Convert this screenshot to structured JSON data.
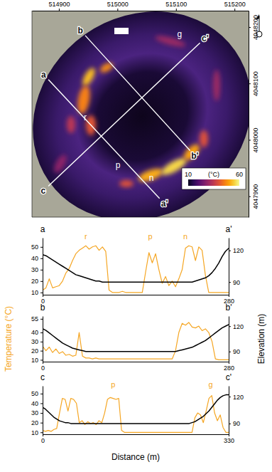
{
  "chart_data": [
    {
      "type": "map",
      "xlim": [
        514854,
        515224
      ],
      "ylim": [
        4047863,
        4048229
      ],
      "xticks": [
        514900,
        515000,
        515100,
        515200
      ],
      "yticks": [
        4047900,
        4048000,
        4048100,
        4048200
      ],
      "transects": [
        {
          "labels": [
            "a",
            "a'"
          ],
          "x": [
            514882,
            515072
          ],
          "y": [
            4048107,
            4047896
          ]
        },
        {
          "labels": [
            "b",
            "b'"
          ],
          "x": [
            514945,
            515124
          ],
          "y": [
            4048185,
            4047981
          ]
        },
        {
          "labels": [
            "c",
            "c'"
          ],
          "x": [
            514882,
            515141
          ],
          "y": [
            4047918,
            4048172
          ]
        }
      ],
      "features": [
        {
          "label": "r",
          "x": 514945,
          "y": 4048040
        },
        {
          "label": "p",
          "x": 515001,
          "y": 4047955
        },
        {
          "label": "n",
          "x": 515058,
          "y": 4047933
        },
        {
          "label": "g",
          "x": 515106,
          "y": 4048187
        }
      ],
      "colorbar": {
        "range": [
          10,
          60
        ],
        "ticks": [
          10,
          60
        ],
        "label": "(°C)"
      }
    },
    {
      "type": "line",
      "ends": [
        "a",
        "a'"
      ],
      "x": [
        0,
        5,
        10,
        15,
        20,
        25,
        30,
        35,
        40,
        45,
        50,
        55,
        60,
        65,
        70,
        75,
        80,
        85,
        90,
        95,
        100,
        105,
        110,
        115,
        120,
        125,
        130,
        135,
        140,
        145,
        150,
        155,
        160,
        165,
        170,
        175,
        180,
        185,
        190,
        195,
        200,
        205,
        210,
        215,
        220,
        225,
        230,
        235,
        240,
        245,
        250,
        255,
        260,
        265,
        270,
        275,
        280
      ],
      "xlim": [
        0,
        280
      ],
      "xticks": [
        0,
        280
      ],
      "ylim": [
        8,
        58
      ],
      "yticks": [
        10,
        20,
        30,
        40,
        50
      ],
      "y2lim": [
        78,
        132
      ],
      "y2ticks": [
        90,
        120
      ],
      "annotations": [
        {
          "text": "r",
          "x": 65
        },
        {
          "text": "p",
          "x": 162
        },
        {
          "text": "n",
          "x": 215
        }
      ],
      "series": [
        {
          "color": "#f5a623",
          "values": [
            12,
            14,
            22,
            14,
            15,
            16,
            20,
            27,
            31,
            38,
            44,
            47,
            49,
            51,
            48,
            50,
            51,
            47,
            50,
            46,
            12,
            10,
            10,
            10,
            11,
            10,
            10,
            10,
            10,
            10,
            10,
            28,
            45,
            36,
            44,
            30,
            18,
            24,
            16,
            20,
            15,
            22,
            30,
            49,
            51,
            50,
            38,
            50,
            47,
            25,
            10,
            10,
            10,
            10,
            10,
            10,
            10
          ]
        },
        {
          "color": "#000000",
          "axis": "y2",
          "values": [
            116,
            115,
            113,
            111,
            109,
            107,
            105,
            103,
            101,
            99,
            97,
            96,
            95,
            94,
            93,
            92,
            91,
            91,
            90,
            90,
            90,
            90,
            90,
            90,
            90,
            90,
            90,
            90,
            90,
            90,
            90,
            90,
            90,
            90,
            90,
            90,
            90,
            90,
            90,
            90,
            90,
            90,
            90,
            90,
            90,
            90,
            91,
            92,
            93,
            94,
            96,
            99,
            103,
            108,
            114,
            119,
            122
          ]
        }
      ]
    },
    {
      "type": "line",
      "ends": [
        "b",
        "b'"
      ],
      "ylabel": "Temperature (°C)",
      "y2label": "Elevation (m)",
      "x": [
        0,
        5,
        10,
        15,
        20,
        25,
        30,
        35,
        40,
        45,
        50,
        55,
        60,
        65,
        70,
        75,
        80,
        85,
        90,
        95,
        100,
        105,
        110,
        115,
        120,
        125,
        130,
        135,
        140,
        145,
        150,
        155,
        160,
        165,
        170,
        175,
        180,
        185,
        190,
        195,
        200,
        205,
        210,
        215,
        220,
        225,
        230,
        235,
        240,
        245,
        250,
        255,
        260,
        265,
        270,
        275,
        280
      ],
      "xlim": [
        0,
        280
      ],
      "xticks": [
        0,
        280
      ],
      "ylim": [
        8,
        58
      ],
      "yticks": [
        10,
        20,
        30,
        40,
        55
      ],
      "y2lim": [
        78,
        132
      ],
      "y2ticks": [
        90,
        120
      ],
      "series": [
        {
          "color": "#f5a623",
          "values": [
            25,
            20,
            24,
            18,
            22,
            17,
            19,
            15,
            16,
            14,
            15,
            40,
            14,
            12,
            12,
            11,
            12,
            11,
            11,
            11,
            11,
            11,
            11,
            11,
            11,
            11,
            11,
            11,
            11,
            11,
            11,
            11,
            11,
            11,
            11,
            11,
            11,
            11,
            11,
            11,
            20,
            40,
            50,
            48,
            51,
            46,
            45,
            47,
            42,
            44,
            40,
            30,
            11,
            10,
            10,
            10,
            10
          ]
        },
        {
          "color": "#000000",
          "axis": "y2",
          "values": [
            117,
            115,
            112,
            109,
            106,
            103,
            100,
            98,
            96,
            94,
            93,
            92,
            91,
            90,
            90,
            90,
            90,
            90,
            90,
            90,
            90,
            90,
            90,
            90,
            90,
            90,
            90,
            90,
            90,
            90,
            90,
            90,
            90,
            90,
            90,
            90,
            90,
            90,
            90,
            90,
            90,
            91,
            92,
            93,
            94,
            95,
            97,
            99,
            101,
            103,
            106,
            109,
            112,
            115,
            118,
            120,
            122
          ]
        }
      ]
    },
    {
      "type": "line",
      "ends": [
        "c",
        "c'"
      ],
      "xlabel": "Distance (m)",
      "x": [
        0,
        5,
        10,
        15,
        20,
        25,
        30,
        35,
        40,
        45,
        50,
        55,
        60,
        65,
        70,
        75,
        80,
        85,
        90,
        95,
        100,
        105,
        110,
        115,
        120,
        125,
        130,
        135,
        140,
        145,
        150,
        155,
        160,
        165,
        170,
        175,
        180,
        185,
        190,
        195,
        200,
        205,
        210,
        215,
        220,
        225,
        230,
        235,
        240,
        245,
        250,
        255,
        260,
        265,
        270,
        275,
        280,
        285,
        290,
        295,
        300,
        305,
        310,
        315,
        320,
        325,
        330
      ],
      "xlim": [
        0,
        330
      ],
      "xticks": [
        0,
        330
      ],
      "ylim": [
        8,
        58
      ],
      "yticks": [
        10,
        20,
        30,
        40,
        50
      ],
      "y2lim": [
        78,
        132
      ],
      "y2ticks": [
        90,
        120
      ],
      "annotations": [
        {
          "text": "p",
          "x": 125
        },
        {
          "text": "g",
          "x": 298
        }
      ],
      "series": [
        {
          "color": "#f5a623",
          "values": [
            12,
            11,
            12,
            11,
            13,
            14,
            30,
            45,
            44,
            32,
            45,
            44,
            40,
            20,
            22,
            18,
            21,
            19,
            20,
            18,
            22,
            20,
            30,
            44,
            46,
            45,
            44,
            45,
            12,
            10,
            10,
            10,
            10,
            10,
            10,
            10,
            10,
            10,
            10,
            10,
            10,
            10,
            10,
            10,
            10,
            10,
            10,
            10,
            10,
            10,
            10,
            10,
            10,
            10,
            25,
            30,
            28,
            20,
            32,
            45,
            48,
            30,
            22,
            28,
            15,
            10,
            10
          ]
        },
        {
          "color": "#000000",
          "axis": "y2",
          "values": [
            108,
            106,
            103,
            100,
            97,
            95,
            93,
            92,
            91,
            91,
            90,
            90,
            90,
            90,
            90,
            90,
            90,
            90,
            90,
            90,
            90,
            90,
            90,
            90,
            90,
            90,
            90,
            90,
            90,
            90,
            90,
            90,
            90,
            90,
            90,
            90,
            90,
            90,
            90,
            90,
            90,
            90,
            90,
            90,
            90,
            90,
            90,
            90,
            90,
            90,
            90,
            90,
            90,
            91,
            92,
            94,
            96,
            98,
            101,
            104,
            108,
            112,
            116,
            119,
            121,
            122,
            122
          ]
        }
      ]
    }
  ]
}
